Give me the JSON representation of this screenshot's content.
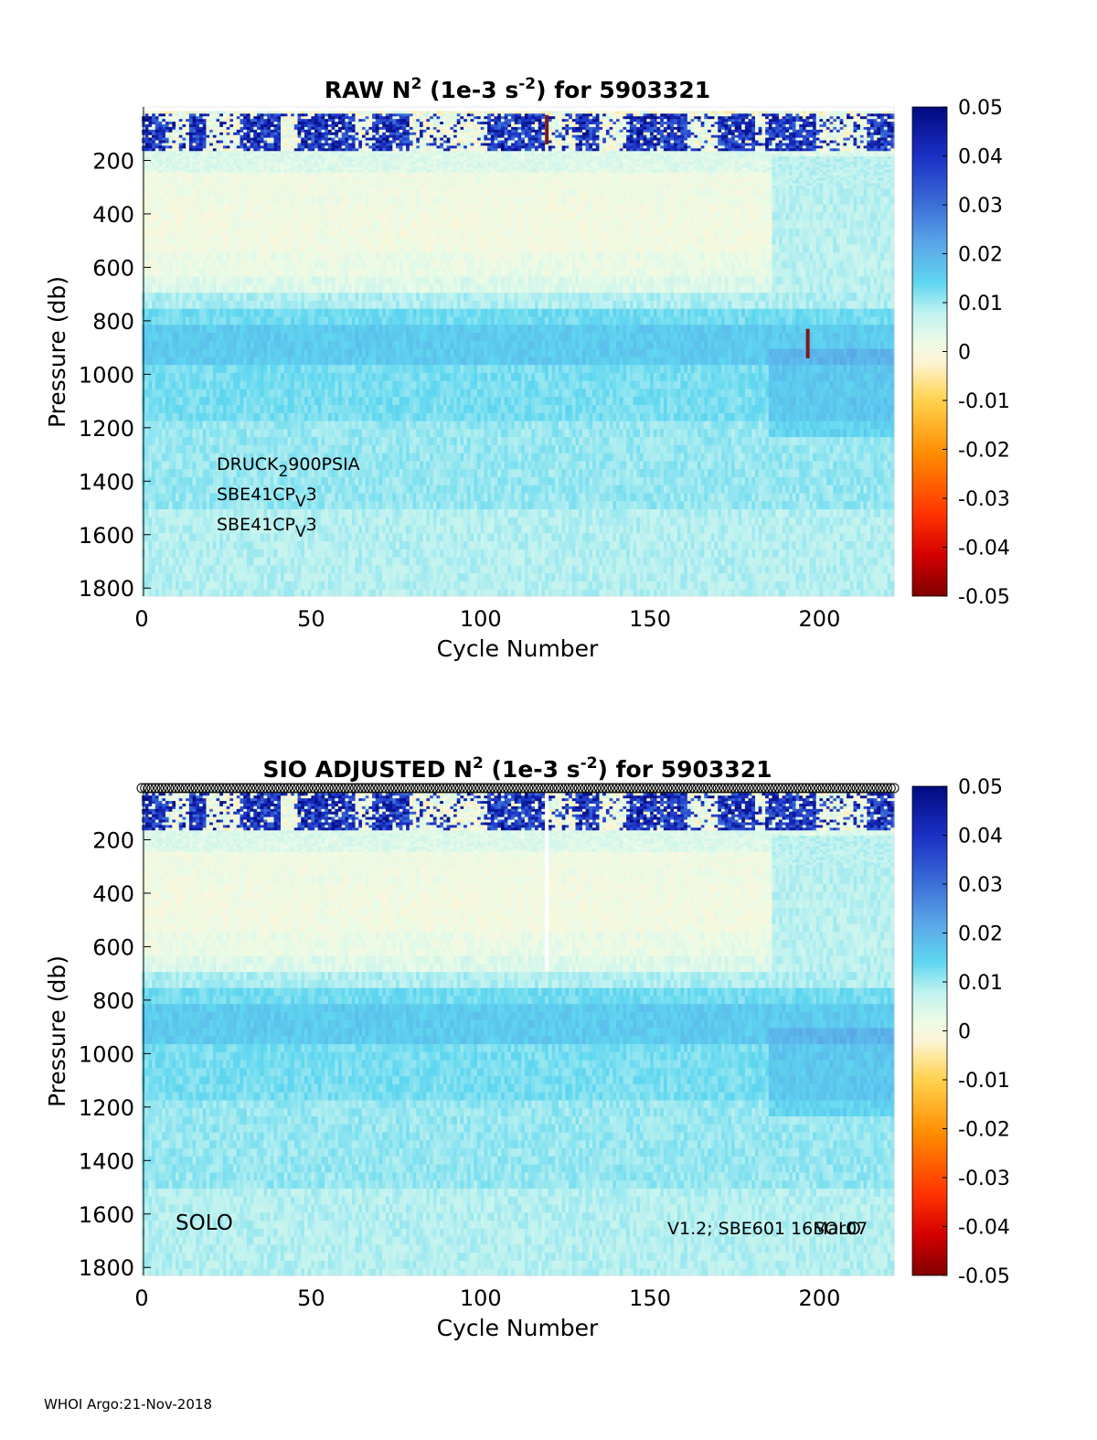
{
  "footer": "WHOI Argo:21-Nov-2018",
  "colors": {
    "colormap": [
      "#7f0000",
      "#d40000",
      "#ff3300",
      "#ff8c00",
      "#ffd24d",
      "#fdf5d6",
      "#ecfbe6",
      "#bff2f0",
      "#5fd7f0",
      "#5aa6e8",
      "#3b6fd8",
      "#1b2fc4",
      "#000a7f"
    ],
    "special": "#7a1a1a"
  },
  "chart_data": [
    {
      "type": "heatmap",
      "title": {
        "prefix": "RAW N",
        "sup1": "2",
        "middle": " (1e-3 s",
        "sup2": "-2",
        "suffix": ") for 5903321"
      },
      "xlabel": "Cycle Number",
      "ylabel": "Pressure (db)",
      "xlim": [
        0,
        222
      ],
      "ylim": [
        1830,
        0
      ],
      "xticks": [
        "0",
        "50",
        "100",
        "150",
        "200"
      ],
      "yticks": [
        "200",
        "400",
        "600",
        "800",
        "1000",
        "1200",
        "1400",
        "1600",
        "1800"
      ],
      "colorbar": {
        "range": [
          -0.05,
          0.05
        ],
        "ticks": [
          "0.05",
          "0.04",
          "0.03",
          "0.02",
          "0.01",
          "0",
          "-0.01",
          "-0.02",
          "-0.03",
          "-0.04",
          "-0.05"
        ]
      },
      "sensors": [
        {
          "main": "DRUCK",
          "sub": "2",
          "rest": "900PSIA"
        },
        {
          "main": "SBE41CP",
          "sub": "V",
          "rest": "3"
        },
        {
          "main": "SBE41CP",
          "sub": "V",
          "rest": "3"
        }
      ],
      "approx_profile_by_depth_db": [
        [
          0,
          0.012
        ],
        [
          100,
          0.03
        ],
        [
          160,
          0.01
        ],
        [
          250,
          0.0015
        ],
        [
          400,
          0.001
        ],
        [
          600,
          0.003
        ],
        [
          700,
          0.007
        ],
        [
          800,
          0.016
        ],
        [
          950,
          0.014
        ],
        [
          1100,
          0.012
        ],
        [
          1500,
          0.009
        ],
        [
          1830,
          0.008
        ]
      ],
      "features": [
        {
          "description": "strong positive band near surface",
          "value": 0.05,
          "depth_db": [
            30,
            170
          ]
        },
        {
          "description": "anomalous spike at cycle 196",
          "cycle": 196,
          "depth_db": [
            830,
            940
          ],
          "value": -0.05
        },
        {
          "description": "anomalous spike at cycle 119",
          "cycle": 119,
          "depth_db": [
            30,
            140
          ],
          "value": -0.05
        }
      ]
    },
    {
      "type": "heatmap",
      "title": {
        "prefix": "SIO  ADJUSTED N",
        "sup1": "2",
        "middle": " (1e-3 s",
        "sup2": "-2",
        "suffix": ") for 5903321"
      },
      "xlabel": "Cycle Number",
      "ylabel": "Pressure (db)",
      "xlim": [
        0,
        222
      ],
      "ylim": [
        1830,
        0
      ],
      "xticks": [
        "0",
        "50",
        "100",
        "150",
        "200"
      ],
      "yticks": [
        "200",
        "400",
        "600",
        "800",
        "1000",
        "1200",
        "1400",
        "1600",
        "1800"
      ],
      "colorbar": {
        "range": [
          -0.05,
          0.05
        ],
        "ticks": [
          "0.05",
          "0.04",
          "0.03",
          "0.02",
          "0.01",
          "0",
          "-0.01",
          "-0.02",
          "-0.03",
          "-0.04",
          "-0.05"
        ]
      },
      "float_type": "SOLO",
      "info_left": "V1.2; SBE601 16Mar07",
      "info_overlap": "SOLO",
      "qc_markers": "circles along top edge at every cycle 0-222",
      "features": [
        {
          "description": "strong positive band near surface",
          "value": 0.05,
          "depth_db": [
            30,
            170
          ]
        },
        {
          "description": "missing data column at cycle 119",
          "cycle": 119,
          "depth_db": [
            0,
            690
          ]
        }
      ]
    }
  ]
}
